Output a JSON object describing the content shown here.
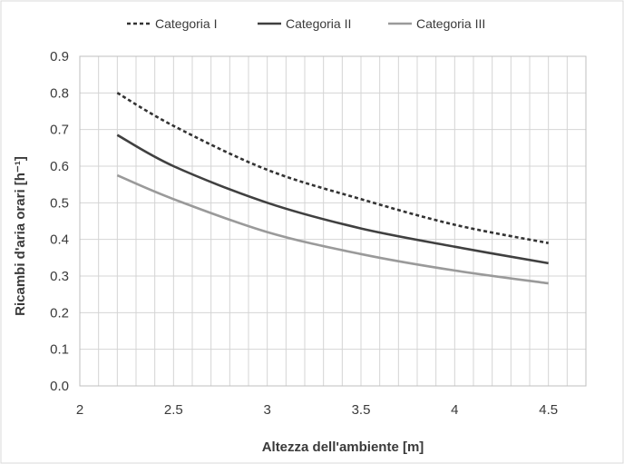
{
  "chart_data": {
    "type": "line",
    "title": "",
    "xlabel": "Altezza dell'ambiente [m]",
    "ylabel": "Ricambi d'aria orari [h⁻¹]",
    "xlim": [
      2,
      4.7
    ],
    "ylim": [
      0,
      0.9
    ],
    "xticks": [
      "2",
      "2.5",
      "3",
      "3.5",
      "4",
      "4.5"
    ],
    "yticks": [
      "0.0",
      "0.1",
      "0.2",
      "0.3",
      "0.4",
      "0.5",
      "0.6",
      "0.7",
      "0.8",
      "0.9"
    ],
    "grid": true,
    "legend_position": "top",
    "x": [
      2.2,
      2.5,
      3.0,
      3.5,
      4.0,
      4.5
    ],
    "series": [
      {
        "name": "Categoria I",
        "values": [
          0.8,
          0.71,
          0.59,
          0.51,
          0.44,
          0.39
        ],
        "color": "#333333",
        "style": "dashed"
      },
      {
        "name": "Categoria II",
        "values": [
          0.685,
          0.6,
          0.5,
          0.43,
          0.38,
          0.335
        ],
        "color": "#404040",
        "style": "solid"
      },
      {
        "name": "Categoria III",
        "values": [
          0.575,
          0.51,
          0.42,
          0.36,
          0.315,
          0.28
        ],
        "color": "#9a9a9a",
        "style": "solid"
      }
    ]
  }
}
